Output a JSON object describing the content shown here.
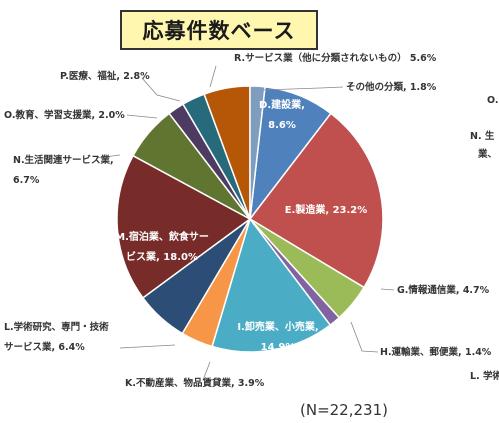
{
  "title": "応募件数ベース",
  "note": "(N=22,231)",
  "chart_data": {
    "type": "pie",
    "title": "応募件数ベース",
    "slices": [
      {
        "id": "D",
        "label_lines": [
          "D.建設業,",
          "8.6%"
        ],
        "value": 8.6,
        "color": "#4f81bd"
      },
      {
        "id": "E",
        "label_lines": [
          "E.製造業, 23.2%"
        ],
        "value": 23.2,
        "color": "#c0504d"
      },
      {
        "id": "G",
        "label_lines": [
          "G.情報通信業, 4.7%"
        ],
        "value": 4.7,
        "color": "#9bbb59"
      },
      {
        "id": "H",
        "label_lines": [
          "H.運輸業、郵便業, 1.4%"
        ],
        "value": 1.4,
        "color": "#8064a2"
      },
      {
        "id": "I",
        "label_lines": [
          "I.卸売業、小売業,",
          "14.9%"
        ],
        "value": 14.9,
        "color": "#4bacc6"
      },
      {
        "id": "K",
        "label_lines": [
          "K.不動産業、物品賃貸業, 3.9%"
        ],
        "value": 3.9,
        "color": "#f79646"
      },
      {
        "id": "L",
        "label_lines": [
          "L.学術研究、専門・技術",
          "サービス業, 6.4%"
        ],
        "value": 6.4,
        "color": "#2c4d75"
      },
      {
        "id": "M",
        "label_lines": [
          "M.宿泊業、飲食サー",
          "ビス業, 18.0%"
        ],
        "value": 18.0,
        "color": "#772c2a"
      },
      {
        "id": "N",
        "label_lines": [
          "N.生活関連サービス業,",
          "6.7%"
        ],
        "value": 6.7,
        "color": "#5f7530"
      },
      {
        "id": "O",
        "label_lines": [
          "O.教育、学習支援業, 2.0%"
        ],
        "value": 2.0,
        "color": "#4d3b62"
      },
      {
        "id": "P",
        "label_lines": [
          "P.医療、福祉, 2.8%"
        ],
        "value": 2.8,
        "color": "#276a7c"
      },
      {
        "id": "R",
        "label_lines": [
          "R.サービス業（他に分類されないもの） 5.6%"
        ],
        "value": 5.6,
        "color": "#b65708"
      },
      {
        "id": "Other",
        "label_lines": [
          "その他の分類, 1.8%"
        ],
        "value": 1.8,
        "color": "#7f9dbf"
      }
    ],
    "edge_fragments": [
      "O.",
      "N. 生",
      "業、",
      "L. 学術"
    ]
  }
}
